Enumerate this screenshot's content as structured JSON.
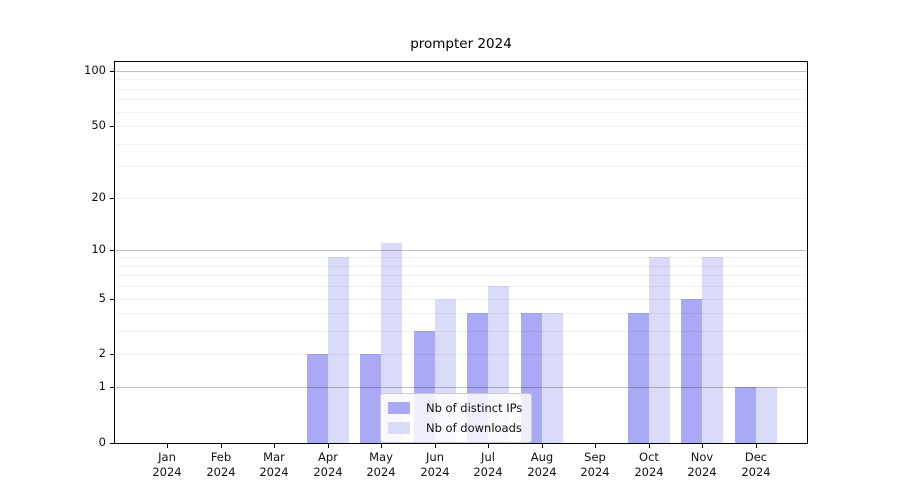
{
  "chart_data": {
    "type": "bar",
    "title": "prompter 2024",
    "categories": [
      "Jan 2024",
      "Feb 2024",
      "Mar 2024",
      "Apr 2024",
      "May 2024",
      "Jun 2024",
      "Jul 2024",
      "Aug 2024",
      "Sep 2024",
      "Oct 2024",
      "Nov 2024",
      "Dec 2024"
    ],
    "x_tick_months": [
      "Jan",
      "Feb",
      "Mar",
      "Apr",
      "May",
      "Jun",
      "Jul",
      "Aug",
      "Sep",
      "Oct",
      "Nov",
      "Dec"
    ],
    "x_tick_year": "2024",
    "series": [
      {
        "name": "Nb of distinct IPs",
        "color": "#a9a9f6",
        "values": [
          0,
          0,
          0,
          2,
          2,
          3,
          4,
          4,
          0,
          4,
          5,
          1
        ]
      },
      {
        "name": "Nb of downloads",
        "color": "#dadaf9",
        "values": [
          0,
          0,
          0,
          9,
          11,
          5,
          6,
          4,
          0,
          9,
          9,
          1
        ]
      }
    ],
    "y_scale": "log1p",
    "ylim": [
      0,
      112
    ],
    "y_tick_values": [
      0,
      1,
      2,
      5,
      10,
      20,
      50,
      100
    ],
    "y_major_gridlines": [
      1,
      10,
      100
    ],
    "y_minor_gridlines": [
      2,
      3,
      4,
      5,
      6,
      7,
      8,
      9,
      20,
      30,
      40,
      50,
      60,
      70,
      80,
      90
    ],
    "grid": true,
    "legend_position": "lower center",
    "xlabel": "",
    "ylabel": ""
  }
}
